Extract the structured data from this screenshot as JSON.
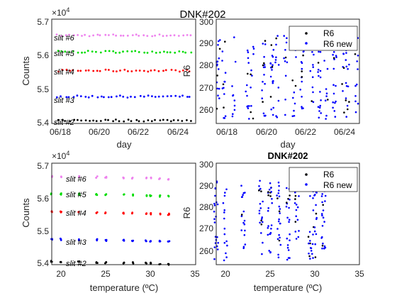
{
  "chart_data": [
    {
      "id": "top-left",
      "type": "scatter",
      "title": "DNK#202",
      "xlabel": "day",
      "ylabel": "Counts",
      "x_ticks": [
        "06/18",
        "06/20",
        "06/22",
        "06/24"
      ],
      "x_range_days": [
        "06/17 12:00",
        "06/24 18:00"
      ],
      "y_ticks": [
        "5.4",
        "5.5",
        "5.6",
        "5.7"
      ],
      "y_exponent_label": "×10",
      "y_exponent_power": "4",
      "ylim": [
        53900,
        57000
      ],
      "grid": false,
      "colors": {
        "slit2": "#000000",
        "slit3": "#0000ff",
        "slit4": "#ff0000",
        "slit5": "#00dd00",
        "slit6": "#ee82ee"
      },
      "annotations": [
        "slit #6",
        "slit #5",
        "slit #4",
        "slit #3",
        "slit #2"
      ],
      "series_levels": [
        {
          "series": "slit #6",
          "value": 56520
        },
        {
          "series": "slit #5",
          "value": 56030
        },
        {
          "series": "slit #4",
          "value": 55470
        },
        {
          "series": "slit #3",
          "value": 54700
        },
        {
          "series": "slit #2",
          "value": 53990
        }
      ]
    },
    {
      "id": "top-right",
      "type": "scatter",
      "title": "",
      "xlabel": "day",
      "ylabel": "R6",
      "x_ticks": [
        "06/18",
        "06/20",
        "06/22",
        "06/24"
      ],
      "y_ticks": [
        "260",
        "270",
        "280",
        "290",
        "300"
      ],
      "ylim": [
        253,
        300
      ],
      "grid": false,
      "legend": {
        "placement": "top-right",
        "entries": [
          "R6",
          "R6 new"
        ]
      },
      "colors": {
        "R6": "#000000",
        "R6 new": "#0000ff"
      }
    },
    {
      "id": "bottom-left",
      "type": "scatter",
      "title": "",
      "xlabel": "temperature (ºC)",
      "ylabel": "Counts",
      "x_ticks": [
        "20",
        "25",
        "30",
        "35"
      ],
      "xlim": [
        19,
        35
      ],
      "y_ticks": [
        "5.4",
        "5.5",
        "5.6",
        "5.7"
      ],
      "y_exponent_label": "×10",
      "y_exponent_power": "4",
      "ylim": [
        53900,
        57000
      ],
      "grid": false,
      "colors": {
        "slit2": "#000000",
        "slit3": "#0000ff",
        "slit4": "#ff0000",
        "slit5": "#00dd00",
        "slit6": "#ee82ee"
      },
      "annotations": [
        "slit #6",
        "slit #5",
        "slit #4",
        "slit #3",
        "slit #2"
      ],
      "series_levels": [
        {
          "series": "slit #6",
          "value": 56600
        },
        {
          "series": "slit #5",
          "value": 56070
        },
        {
          "series": "slit #4",
          "value": 55520
        },
        {
          "series": "slit #3",
          "value": 54680
        },
        {
          "series": "slit #2",
          "value": 54000
        }
      ]
    },
    {
      "id": "bottom-right",
      "type": "scatter",
      "title": "DNK#202",
      "xlabel": "temperature (ºC)",
      "ylabel": "R6",
      "x_ticks": [
        "20",
        "25",
        "30",
        "35"
      ],
      "xlim": [
        19,
        35
      ],
      "y_ticks": [
        "260",
        "270",
        "280",
        "290",
        "300"
      ],
      "ylim": [
        253,
        300
      ],
      "grid": false,
      "legend": {
        "placement": "top-right",
        "entries": [
          "R6",
          "R6 new"
        ]
      },
      "colors": {
        "R6": "#000000",
        "R6 new": "#0000ff"
      }
    }
  ]
}
